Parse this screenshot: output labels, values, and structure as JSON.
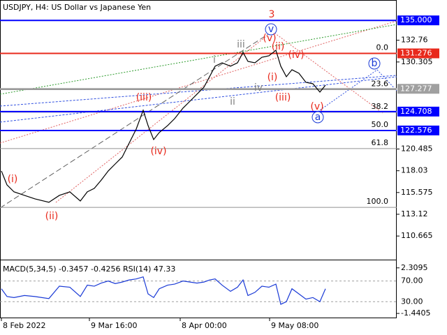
{
  "chart_data": [
    {
      "type": "line",
      "title": "USDJPY, H4:  US Dollar vs Japanese Yen",
      "color": "#000000",
      "x": [
        0.5,
        2.5,
        5,
        8.75,
        12.5,
        17.5,
        21.25,
        25,
        28.75,
        31.25,
        33.75,
        36.25,
        38.75,
        41.25,
        43.75,
        46.25,
        48.75,
        51.25,
        53,
        55,
        57,
        60,
        62.5,
        65.5,
        68,
        70.5,
        73,
        75,
        77,
        79.5,
        82.5,
        85,
        87,
        88.75,
        91.25,
        93.75,
        96.25,
        98.75,
        100.5,
        102.5,
        104.5,
        107,
        109.5,
        112,
        114.5,
        116.5
      ],
      "values": [
        118.01,
        116.43,
        115.65,
        115.25,
        114.86,
        114.47,
        115.25,
        115.65,
        114.62,
        115.65,
        116.04,
        116.98,
        118.01,
        118.8,
        119.58,
        121.16,
        122.73,
        124.86,
        123.13,
        121.55,
        122.34,
        123.13,
        123.91,
        125.1,
        125.88,
        126.67,
        127.46,
        128.64,
        129.83,
        130.21,
        129.83,
        130.21,
        131.39,
        130.37,
        130.21,
        130.84,
        131.0,
        131.63,
        129.83,
        128.64,
        129.43,
        129.03,
        128.01,
        127.85,
        126.91,
        127.69
      ],
      "xlim": [
        0,
        142
      ],
      "ylim": [
        108.0,
        137.3
      ],
      "xticks": [
        {
          "value": 0.5,
          "label": "8 Feb 2022"
        },
        {
          "value": 32,
          "label": "9 Mar 16:00"
        },
        {
          "value": 64.5,
          "label": "8 Apr 00:00"
        },
        {
          "value": 96.5,
          "label": "9 May 08:00"
        }
      ],
      "yticks": [
        132.76,
        130.305,
        120.485,
        118.03,
        115.575,
        113.12,
        110.665
      ],
      "levels": [
        {
          "value": 135,
          "label": "135.000",
          "color": "#0000ff"
        },
        {
          "value": 131.276,
          "color": "#e8291c"
        },
        {
          "value": 127.277,
          "color": "#a0a0a0"
        },
        {
          "value": 124.708,
          "color": "#0000ff"
        },
        {
          "value": 122.576,
          "color": "#0000ff"
        }
      ],
      "fib_anchor": [
        131.276,
        113.9
      ],
      "fib_levels": [
        {
          "value": 0,
          "label": "0.0"
        },
        23.6,
        38.2,
        {
          "value": 50,
          "label": "50.0"
        },
        61.8,
        {
          "value": 100,
          "label": "100.0"
        }
      ],
      "annotations": [
        "3",
        "v",
        "(v)",
        "(ii)",
        "(iv)",
        "(i)",
        "(iii)",
        "(v)",
        "iii",
        "i",
        "iv",
        "ii",
        "(iii)",
        "(iv)",
        "(i)",
        "(ii)",
        "b",
        "a"
      ]
    },
    {
      "type": "line",
      "title": "MACD(5,34,5) -0.3457 -0.4256 RSI(14) 47.33",
      "color": "#1a3ad6",
      "values": [
        55,
        40,
        38,
        42,
        40,
        36,
        60,
        58,
        40,
        62,
        60,
        66,
        70,
        65,
        68,
        72,
        74,
        78,
        45,
        38,
        55,
        62,
        64,
        70,
        68,
        66,
        68,
        72,
        74,
        62,
        50,
        58,
        72,
        42,
        48,
        60,
        58,
        64,
        25,
        30,
        55,
        45,
        35,
        38,
        30,
        55
      ],
      "ylim": [
        -0.7,
        110
      ],
      "yticks": [
        {
          "value": 70,
          "label": "70.00"
        },
        {
          "value": 30,
          "label": "30.00"
        }
      ],
      "y2lim": [
        -1.78,
        2.93
      ],
      "y2ticks": [
        2.3095,
        -1.4405
      ]
    }
  ]
}
